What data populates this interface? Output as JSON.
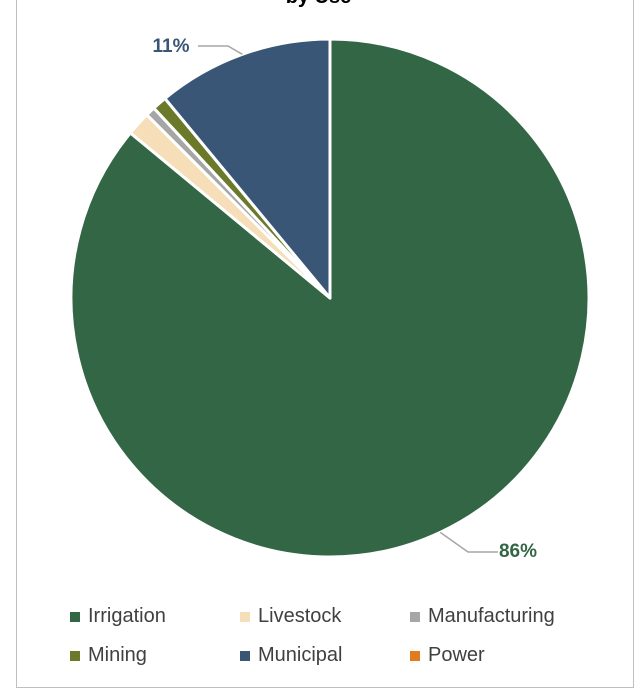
{
  "chart_data": {
    "type": "pie",
    "title": "by Use",
    "categories": [
      "Irrigation",
      "Livestock",
      "Manufacturing",
      "Mining",
      "Municipal",
      "Power"
    ],
    "values": [
      86,
      1.5,
      0.6,
      0.9,
      11,
      0.0
    ],
    "colors": [
      "#336644",
      "#f5deb8",
      "#a6a6a6",
      "#6b7a2a",
      "#3a5677",
      "#e07b20"
    ],
    "data_labels": [
      {
        "category": "Irrigation",
        "text": "86%"
      },
      {
        "category": "Municipal",
        "text": "11%"
      }
    ],
    "legend_position": "bottom"
  }
}
